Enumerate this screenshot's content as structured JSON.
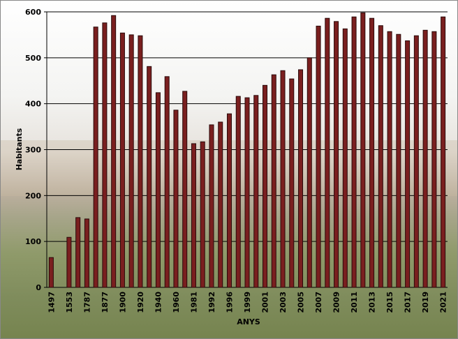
{
  "chart_data": {
    "type": "bar",
    "x_label": "ANYS",
    "y_label": "Habitants",
    "categories": [
      "1497",
      null,
      "1553",
      null,
      "1787",
      null,
      "1877",
      null,
      "1900",
      null,
      "1920",
      null,
      "1940",
      null,
      "1960",
      null,
      "1981",
      null,
      "1992",
      null,
      "1996",
      null,
      "1999",
      null,
      "2001",
      null,
      "2003",
      null,
      "2005",
      null,
      "2007",
      null,
      "2009",
      null,
      "2011",
      null,
      "2013",
      null,
      "2015",
      null,
      "2017",
      null,
      "2019",
      null,
      "2021"
    ],
    "values": [
      65,
      null,
      109,
      152,
      149,
      567,
      576,
      592,
      554,
      550,
      548,
      481,
      424,
      459,
      386,
      427,
      313,
      317,
      354,
      360,
      378,
      416,
      413,
      418,
      440,
      463,
      472,
      454,
      474,
      500,
      569,
      586,
      579,
      563,
      589,
      598,
      586,
      570,
      557,
      551,
      537,
      548,
      560,
      557,
      589
    ],
    "color": "#7a1f1f",
    "ylim": [
      0,
      600
    ],
    "yticks": [
      0,
      100,
      200,
      300,
      400,
      500,
      600
    ],
    "grid": true
  }
}
